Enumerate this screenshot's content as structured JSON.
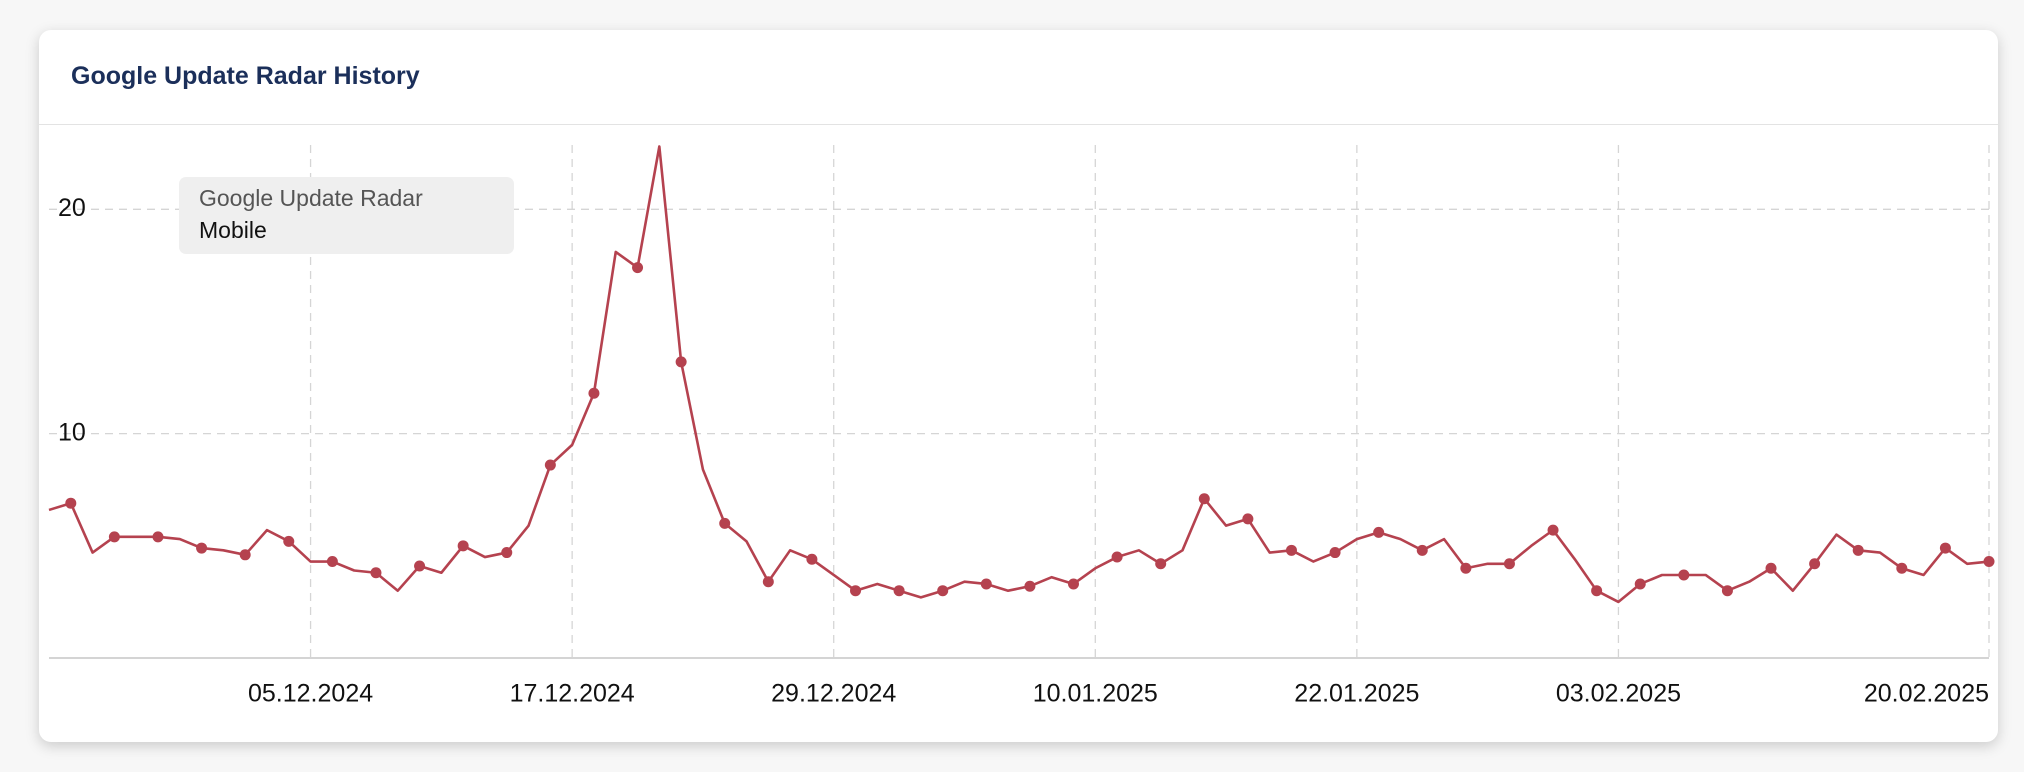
{
  "title": "Google Update Radar History",
  "chart_data": {
    "type": "line",
    "legend_title": "Google Update Radar",
    "x": [
      "23.11.2024",
      "24.11.2024",
      "25.11.2024",
      "26.11.2024",
      "27.11.2024",
      "28.11.2024",
      "29.11.2024",
      "30.11.2024",
      "01.12.2024",
      "02.12.2024",
      "03.12.2024",
      "04.12.2024",
      "05.12.2024",
      "06.12.2024",
      "07.12.2024",
      "08.12.2024",
      "09.12.2024",
      "10.12.2024",
      "11.12.2024",
      "12.12.2024",
      "13.12.2024",
      "14.12.2024",
      "15.12.2024",
      "16.12.2024",
      "17.12.2024",
      "18.12.2024",
      "19.12.2024",
      "20.12.2024",
      "21.12.2024",
      "22.12.2024",
      "23.12.2024",
      "24.12.2024",
      "25.12.2024",
      "26.12.2024",
      "27.12.2024",
      "28.12.2024",
      "29.12.2024",
      "30.12.2024",
      "31.12.2024",
      "01.01.2025",
      "02.01.2025",
      "03.01.2025",
      "04.01.2025",
      "05.01.2025",
      "06.01.2025",
      "07.01.2025",
      "08.01.2025",
      "09.01.2025",
      "10.01.2025",
      "11.01.2025",
      "12.01.2025",
      "13.01.2025",
      "14.01.2025",
      "15.01.2025",
      "16.01.2025",
      "17.01.2025",
      "18.01.2025",
      "19.01.2025",
      "20.01.2025",
      "21.01.2025",
      "22.01.2025",
      "23.01.2025",
      "24.01.2025",
      "25.01.2025",
      "26.01.2025",
      "27.01.2025",
      "28.01.2025",
      "29.01.2025",
      "30.01.2025",
      "31.01.2025",
      "01.02.2025",
      "02.02.2025",
      "03.02.2025",
      "04.02.2025",
      "05.02.2025",
      "06.02.2025",
      "07.02.2025",
      "08.02.2025",
      "09.02.2025",
      "10.02.2025",
      "11.02.2025",
      "12.02.2025",
      "13.02.2025",
      "14.02.2025",
      "15.02.2025",
      "16.02.2025",
      "17.02.2025",
      "18.02.2025",
      "19.02.2025",
      "20.02.2025"
    ],
    "series": [
      {
        "name": "Mobile",
        "color": "#b5424f",
        "values": [
          6.6,
          6.9,
          4.7,
          5.4,
          5.4,
          5.4,
          5.3,
          4.9,
          4.8,
          4.6,
          5.7,
          5.2,
          4.3,
          4.3,
          3.9,
          3.8,
          3.0,
          4.1,
          3.8,
          5.0,
          4.5,
          4.7,
          5.9,
          8.6,
          9.5,
          11.8,
          18.1,
          17.4,
          22.8,
          13.2,
          8.4,
          6.0,
          5.2,
          3.4,
          4.8,
          4.4,
          3.7,
          3.0,
          3.3,
          3.0,
          2.7,
          3.0,
          3.4,
          3.3,
          3.0,
          3.2,
          3.6,
          3.3,
          4.0,
          4.5,
          4.8,
          4.2,
          4.8,
          7.1,
          5.9,
          6.2,
          4.7,
          4.8,
          4.3,
          4.7,
          5.3,
          5.6,
          5.3,
          4.8,
          5.3,
          4.0,
          4.2,
          4.2,
          5.0,
          5.7,
          4.4,
          3.0,
          2.5,
          3.3,
          3.7,
          3.7,
          3.7,
          3.0,
          3.4,
          4.0,
          3.0,
          4.2,
          5.5,
          4.8,
          4.7,
          4.0,
          3.7,
          4.9,
          4.2,
          4.3
        ]
      }
    ],
    "xticks": [
      "05.12.2024",
      "17.12.2024",
      "29.12.2024",
      "10.01.2025",
      "22.01.2025",
      "03.02.2025",
      "20.02.2025"
    ],
    "ylim": [
      0,
      23
    ],
    "yticks": [
      10,
      20
    ],
    "grid": true
  }
}
